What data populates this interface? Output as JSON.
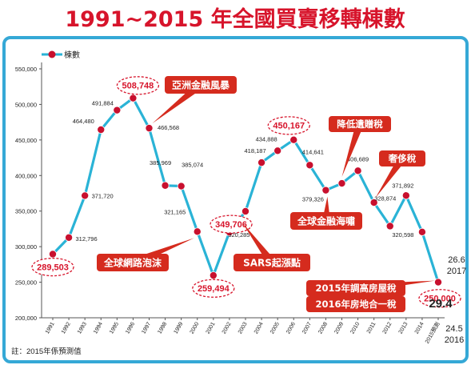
{
  "colors": {
    "title": "#d7142b",
    "frame": "#35a8d6",
    "line": "#2ab3d6",
    "marker": "#c8102e",
    "highlight": "#d7142b",
    "event_fill": "#d52b1e",
    "text": "#222222"
  },
  "chart_data": {
    "type": "line",
    "title": "1991~2015 年全國買賣移轉棟數",
    "xlabel": "",
    "ylabel": "",
    "legend": {
      "label": "棟數",
      "position": "top-left"
    },
    "ylim": [
      200000,
      550000
    ],
    "y_ticks": [
      "200,000",
      "250,000",
      "300,000",
      "350,000",
      "400,000",
      "450,000",
      "500,000",
      "550,000"
    ],
    "grid": false,
    "categories": [
      "1991",
      "1992",
      "1993",
      "1994",
      "1995",
      "1996",
      "1997",
      "1998",
      "1999",
      "2000",
      "2001",
      "2002",
      "2003",
      "2004",
      "2005",
      "2006",
      "2007",
      "2008",
      "2009",
      "2010",
      "2011",
      "2012",
      "2013",
      "2014",
      "2015預測"
    ],
    "series": [
      {
        "name": "棟數",
        "values": [
          289503,
          312796,
          371720,
          464480,
          491884,
          508748,
          466568,
          385969,
          385074,
          321165,
          259494,
          320285,
          349706,
          418187,
          434888,
          450167,
          414641,
          379326,
          389000,
          406689,
          362000,
          328874,
          371892,
          320598,
          250000
        ]
      }
    ],
    "value_labels": [
      {
        "index": 0,
        "text": "289,503",
        "highlight": true
      },
      {
        "index": 1,
        "text": "312,796",
        "highlight": false
      },
      {
        "index": 2,
        "text": "371,720",
        "highlight": false
      },
      {
        "index": 3,
        "text": "464,480",
        "highlight": false
      },
      {
        "index": 4,
        "text": "491,884",
        "highlight": false
      },
      {
        "index": 5,
        "text": "508,748",
        "highlight": true
      },
      {
        "index": 6,
        "text": "466,568",
        "highlight": false
      },
      {
        "index": 7,
        "text": "385,969",
        "highlight": false
      },
      {
        "index": 8,
        "text": "385,074",
        "highlight": false
      },
      {
        "index": 9,
        "text": "321,165",
        "highlight": false
      },
      {
        "index": 10,
        "text": "259,494",
        "highlight": true
      },
      {
        "index": 11,
        "text": "320,285",
        "highlight": false
      },
      {
        "index": 12,
        "text": "349,706",
        "highlight": true
      },
      {
        "index": 13,
        "text": "418,187",
        "highlight": false
      },
      {
        "index": 14,
        "text": "434,888",
        "highlight": false
      },
      {
        "index": 15,
        "text": "450,167",
        "highlight": true
      },
      {
        "index": 16,
        "text": "414,641",
        "highlight": false
      },
      {
        "index": 17,
        "text": "379,326",
        "highlight": false
      },
      {
        "index": 19,
        "text": "406,689",
        "highlight": false
      },
      {
        "index": 21,
        "text": "328,874",
        "highlight": false
      },
      {
        "index": 22,
        "text": "371,892",
        "highlight": false
      },
      {
        "index": 23,
        "text": "320,598",
        "highlight": false
      },
      {
        "index": 24,
        "text": "250,000",
        "highlight": true
      }
    ],
    "events": [
      {
        "text": "亞洲金融風暴",
        "index": 6
      },
      {
        "text": "全球網路泡沫",
        "index": 9
      },
      {
        "text": "SARS起漲點",
        "index": 12
      },
      {
        "text": "全球金融海嘯",
        "index": 17
      },
      {
        "text": "降低遺贈稅",
        "index": 18
      },
      {
        "text": "奢侈稅",
        "index": 20
      },
      {
        "text": "2015年調高房屋稅",
        "index": 24
      },
      {
        "text": "2016年房地合一稅",
        "index": 24
      }
    ],
    "side_notes": {
      "n1_value": "26.6",
      "n1_year": "2017",
      "n2_value": "29.4",
      "n3_value": "24.5",
      "n3_year": "2016"
    },
    "footnote": "註：2015年係預測值"
  }
}
